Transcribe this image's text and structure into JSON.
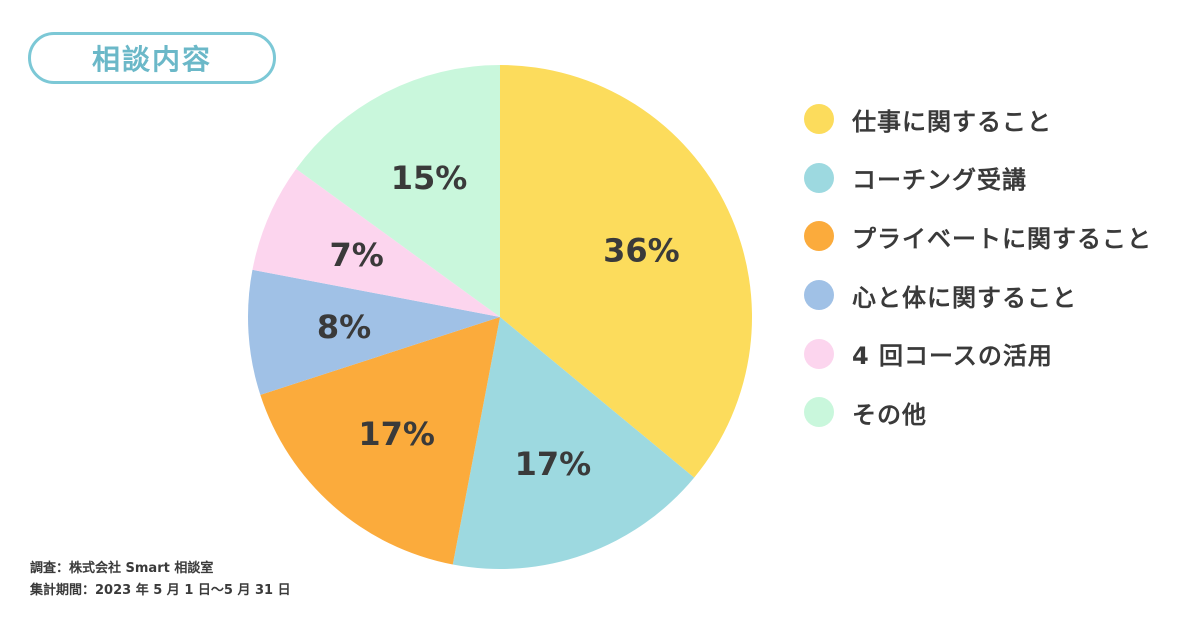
{
  "title": "相談内容",
  "chart_data": {
    "type": "pie",
    "title": "相談内容",
    "legend_position": "right",
    "slices": [
      {
        "label": "仕事に関すること",
        "value": 36,
        "value_label": "36%",
        "color": "#fcdc5c"
      },
      {
        "label": "コーチング受講",
        "value": 17,
        "value_label": "17%",
        "color": "#9dd9e0"
      },
      {
        "label": "プライベートに関すること",
        "value": 17,
        "value_label": "17%",
        "color": "#fbab3c"
      },
      {
        "label": "心と体に関すること",
        "value": 8,
        "value_label": "8%",
        "color": "#a0c1e6"
      },
      {
        "label": "4 回コースの活用",
        "value": 7,
        "value_label": "7%",
        "color": "#fcd5ee"
      },
      {
        "label": "その他",
        "value": 15,
        "value_label": "15%",
        "color": "#c9f7dc"
      }
    ]
  },
  "source": {
    "line1": "調査：株式会社 Smart 相談室",
    "line2": "集計期間：2023 年 5 月 1 日〜5 月 31 日"
  }
}
